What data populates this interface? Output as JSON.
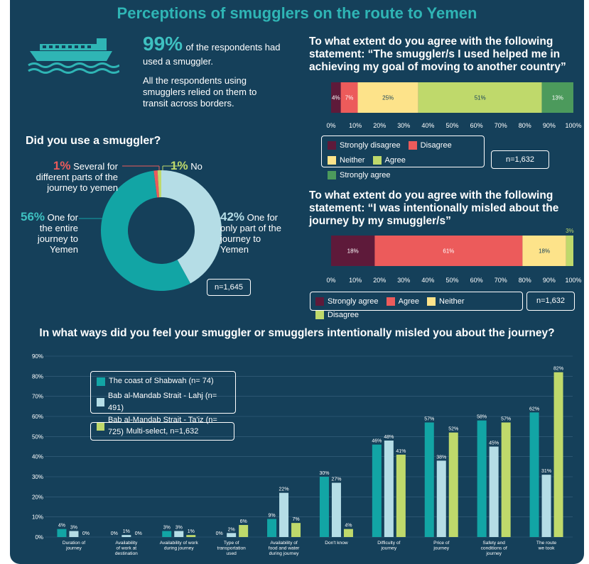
{
  "title": "Perceptions of smugglers on the route to Yemen",
  "intro": {
    "big_pct": "99%",
    "text1": "of the respondents had used a smuggler.",
    "text2": "All the respondents using smugglers relied on them to transit across borders."
  },
  "colors": {
    "bg": "#15405a",
    "teal": "#12a5a5",
    "lightblue": "#b5dde6",
    "lime": "#bfd96b",
    "maroon": "#5e1a3a",
    "coral": "#ec5b5b",
    "yellow": "#fde38a",
    "green": "#4c9a5c"
  },
  "donut": {
    "heading": "Did you use a smuggler?",
    "n": "n=1,645",
    "labels": [
      {
        "pct": "1%",
        "text": "Several for different parts of the journey to yemen"
      },
      {
        "pct": "1%",
        "text": "No"
      },
      {
        "pct": "56%",
        "text": "One for the entire journey to Yemen"
      },
      {
        "pct": "42%",
        "text": "One for only part of the journey to Yemen"
      }
    ]
  },
  "q1": {
    "heading": "To what extent do you agree with the following statement: “The smuggler/s I used helped me in achieving my goal of moving to another country”",
    "n": "n=1,632",
    "legend": [
      "Strongly disagree",
      "Disagree",
      "Neither",
      "Agree",
      "Strongly agree"
    ]
  },
  "q2": {
    "heading": "To what extent do you agree with the following statement: “I was intentionally misled about the journey by my smuggler/s”",
    "n": "n=1,632",
    "legend": [
      "Strongly agree",
      "Agree",
      "Neither",
      "Disagree"
    ]
  },
  "bar_section": {
    "heading": "In what ways did you feel your smuggler or smugglers intentionally misled you about the journey?",
    "legend": [
      "The coast of Shabwah (n= 74)",
      "Bab al-Mandab Strait - Lahj (n= 491)",
      "Bab al-Mandab Strait - Ta'iz (n= 725)"
    ],
    "note": "Multi-select, n=1,632"
  },
  "chart_data": [
    {
      "type": "pie",
      "title": "Did you use a smuggler?",
      "categories": [
        "One for only part of the journey to Yemen",
        "One for the entire journey to Yemen",
        "Several for different parts of the journey to yemen",
        "No"
      ],
      "values": [
        42,
        56,
        1,
        1
      ],
      "colors": [
        "#b5dde6",
        "#12a5a5",
        "#ec5b5b",
        "#bfd96b"
      ]
    },
    {
      "type": "bar",
      "orientation": "horizontal-stacked",
      "categories": [
        "Strongly disagree",
        "Disagree",
        "Neither",
        "Agree",
        "Strongly agree"
      ],
      "values": [
        4,
        7,
        25,
        51,
        13
      ],
      "colors": [
        "#5e1a3a",
        "#ec5b5b",
        "#fde38a",
        "#bfd96b",
        "#4c9a5c"
      ],
      "xlim": [
        0,
        100
      ],
      "ticks": [
        "0%",
        "10%",
        "20%",
        "30%",
        "40%",
        "50%",
        "60%",
        "70%",
        "80%",
        "90%",
        "100%"
      ]
    },
    {
      "type": "bar",
      "orientation": "horizontal-stacked",
      "categories": [
        "Strongly agree",
        "Agree",
        "Neither",
        "Disagree"
      ],
      "values": [
        18,
        61,
        18,
        3
      ],
      "colors": [
        "#5e1a3a",
        "#ec5b5b",
        "#fde38a",
        "#bfd96b"
      ],
      "xlim": [
        0,
        100
      ],
      "ticks": [
        "0%",
        "10%",
        "20%",
        "30%",
        "40%",
        "50%",
        "60%",
        "70%",
        "80%",
        "90%",
        "100%"
      ]
    },
    {
      "type": "bar",
      "categories": [
        [
          "Duration of",
          "journey"
        ],
        [
          "Availability",
          "of work at",
          "destination"
        ],
        [
          "Availability of work",
          "during journey"
        ],
        [
          "Type of",
          "transportation",
          "used"
        ],
        [
          "Availability of",
          "food and water",
          "during journey"
        ],
        [
          "Don't know"
        ],
        [
          "Difficulty of",
          "journey"
        ],
        [
          "Price of",
          "journey"
        ],
        [
          "Safety and",
          "conditions of",
          "journey"
        ],
        [
          "The route",
          "we took"
        ]
      ],
      "series": [
        {
          "name": "The coast of Shabwah (n= 74)",
          "color": "#12a5a5",
          "values": [
            4,
            0,
            3,
            0,
            9,
            30,
            46,
            57,
            58,
            62
          ]
        },
        {
          "name": "Bab al-Mandab Strait - Lahj (n= 491)",
          "color": "#b5dde6",
          "values": [
            3,
            1,
            3,
            2,
            22,
            27,
            48,
            38,
            45,
            31
          ]
        },
        {
          "name": "Bab al-Mandab Strait - Ta'iz (n= 725)",
          "color": "#bfd96b",
          "values": [
            0,
            0,
            1,
            6,
            7,
            4,
            41,
            52,
            57,
            82
          ]
        }
      ],
      "ylim": [
        0,
        90
      ],
      "yticks": [
        "0%",
        "10%",
        "20%",
        "30%",
        "40%",
        "50%",
        "60%",
        "70%",
        "80%",
        "90%"
      ]
    }
  ]
}
